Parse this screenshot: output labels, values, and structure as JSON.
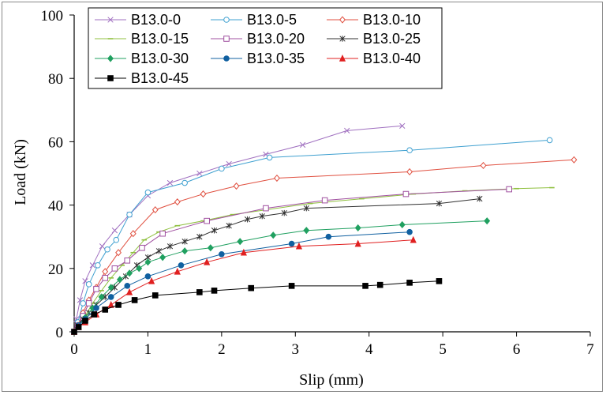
{
  "chart_data": {
    "type": "line",
    "title": "",
    "xlabel": "Slip (mm)",
    "ylabel": "Load (kN)",
    "xlim": [
      0,
      7
    ],
    "ylim": [
      0,
      100
    ],
    "xticks": [
      "0",
      "1",
      "2",
      "3",
      "4",
      "5",
      "6",
      "7"
    ],
    "yticks": [
      "0",
      "20",
      "40",
      "60",
      "80",
      "100"
    ],
    "grid": false,
    "legend_position": "top",
    "series": [
      {
        "name": "B13.0-0",
        "color": "#a070c0",
        "marker": "x",
        "x": [
          0,
          0.03,
          0.08,
          0.15,
          0.25,
          0.38,
          0.55,
          0.75,
          1.0,
          1.3,
          1.7,
          2.1,
          2.6,
          3.1,
          3.7,
          4.45
        ],
        "y": [
          0,
          4,
          10,
          16,
          21,
          27,
          32,
          37,
          43,
          47,
          50,
          53,
          56,
          59,
          63.5,
          65
        ]
      },
      {
        "name": "B13.0-5",
        "color": "#3fa0d0",
        "marker": "circle-open",
        "x": [
          0,
          0.05,
          0.12,
          0.2,
          0.32,
          0.45,
          0.57,
          0.75,
          1.0,
          1.5,
          2.0,
          2.65,
          4.55,
          6.45
        ],
        "y": [
          0,
          3,
          9,
          15,
          21,
          26,
          29,
          37,
          44,
          47,
          51.5,
          55,
          57.3,
          60.5
        ]
      },
      {
        "name": "B13.0-10",
        "color": "#e05040",
        "marker": "diamond-open",
        "x": [
          0,
          0.05,
          0.12,
          0.2,
          0.3,
          0.42,
          0.6,
          0.8,
          1.1,
          1.4,
          1.75,
          2.2,
          2.75,
          4.55,
          5.55,
          6.78
        ],
        "y": [
          0,
          2,
          6,
          10,
          14,
          19,
          25,
          31,
          38.5,
          41,
          43.5,
          46,
          48.5,
          50.5,
          52.5,
          54.3
        ]
      },
      {
        "name": "B13.0-15",
        "color": "#90c040",
        "marker": "dash",
        "x": [
          0,
          0.06,
          0.15,
          0.25,
          0.37,
          0.5,
          0.65,
          0.8,
          0.95,
          1.15,
          1.4,
          1.75,
          2.15,
          2.6,
          3.2,
          3.9,
          4.6,
          5.3,
          6.0,
          6.48
        ],
        "y": [
          0,
          2,
          5,
          9,
          13,
          17,
          21,
          25,
          29,
          31.5,
          33.5,
          35,
          37,
          38.5,
          40.5,
          42,
          43.5,
          44.5,
          45.2,
          45.5
        ]
      },
      {
        "name": "B13.0-20",
        "color": "#a050a0",
        "marker": "square-open",
        "x": [
          0,
          0.05,
          0.12,
          0.2,
          0.3,
          0.42,
          0.55,
          0.72,
          0.92,
          1.2,
          1.8,
          2.6,
          3.4,
          4.5,
          5.9
        ],
        "y": [
          0,
          2,
          5,
          9,
          13.5,
          17,
          20,
          22.5,
          26.5,
          31,
          35,
          39,
          41.5,
          43.5,
          45
        ]
      },
      {
        "name": "B13.0-25",
        "color": "#303030",
        "marker": "star",
        "x": [
          0,
          0.05,
          0.12,
          0.2,
          0.3,
          0.42,
          0.55,
          0.7,
          0.85,
          1.0,
          1.15,
          1.3,
          1.5,
          1.7,
          1.9,
          2.1,
          2.35,
          2.55,
          2.85,
          3.15,
          4.95,
          5.5
        ],
        "y": [
          0,
          2,
          4,
          6,
          8.5,
          11,
          14,
          17.5,
          21,
          23.5,
          25.5,
          27,
          28.5,
          30,
          32,
          33.5,
          35.5,
          36.5,
          37.5,
          39,
          40.5,
          42
        ]
      },
      {
        "name": "B13.0-30",
        "color": "#20a060",
        "marker": "diamond",
        "x": [
          0,
          0.06,
          0.15,
          0.25,
          0.37,
          0.5,
          0.62,
          0.75,
          0.88,
          1.0,
          1.2,
          1.5,
          1.85,
          2.25,
          2.7,
          3.15,
          3.85,
          4.45,
          5.6
        ],
        "y": [
          0,
          2,
          4.5,
          7.5,
          11,
          14,
          16.5,
          18.5,
          20,
          22,
          23.5,
          25.5,
          26.5,
          28.5,
          30.5,
          32,
          32.8,
          33.8,
          35
        ]
      },
      {
        "name": "B13.0-35",
        "color": "#1060a0",
        "marker": "circle",
        "x": [
          0,
          0.06,
          0.15,
          0.3,
          0.5,
          0.72,
          1.0,
          1.45,
          2.0,
          2.95,
          3.45,
          4.55
        ],
        "y": [
          0,
          2,
          4,
          7.5,
          11,
          14.5,
          17.5,
          21,
          24.5,
          27.8,
          30,
          31.5
        ]
      },
      {
        "name": "B13.0-40",
        "color": "#e02020",
        "marker": "triangle",
        "x": [
          0,
          0.06,
          0.15,
          0.3,
          0.5,
          0.75,
          1.05,
          1.4,
          1.8,
          2.3,
          3.05,
          3.85,
          4.6
        ],
        "y": [
          0,
          1.5,
          3,
          5.5,
          8.5,
          12.5,
          16,
          19,
          22,
          25,
          27,
          27.8,
          29
        ]
      },
      {
        "name": "B13.0-45",
        "color": "#000000",
        "marker": "square",
        "x": [
          0,
          0.06,
          0.15,
          0.27,
          0.42,
          0.6,
          0.82,
          1.1,
          1.7,
          1.9,
          2.4,
          2.95,
          3.95,
          4.15,
          4.55,
          4.95
        ],
        "y": [
          0,
          1.5,
          3.5,
          5.5,
          7,
          8.5,
          10,
          11.5,
          12.5,
          13,
          13.8,
          14.5,
          14.5,
          14.8,
          15.5,
          16
        ]
      }
    ]
  }
}
